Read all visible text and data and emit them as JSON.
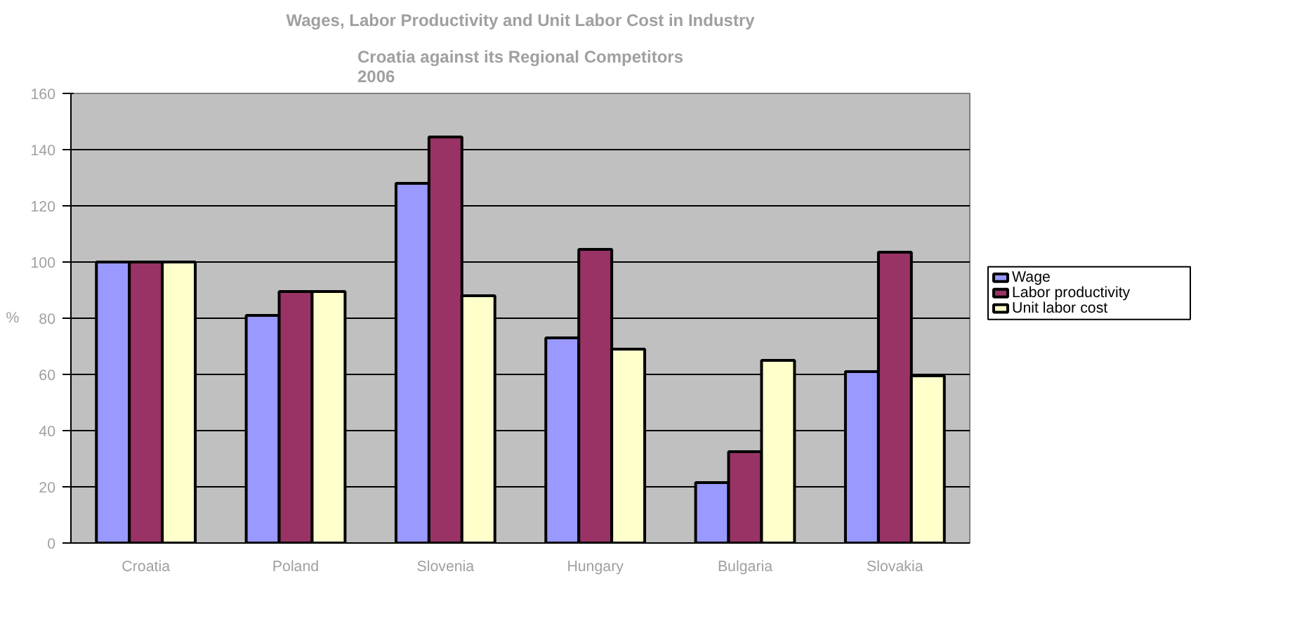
{
  "chart_data": {
    "type": "bar",
    "title": "Wages, Labor Productivity and Unit Labor Cost in Industry",
    "subtitle": "Croatia against its Regional Competitors\n2006",
    "ylabel": "%",
    "categories": [
      "Croatia",
      "Poland",
      "Slovenia",
      "Hungary",
      "Bulgaria",
      "Slovakia"
    ],
    "series": [
      {
        "name": "Wage",
        "color": "#9999ff",
        "values": [
          100,
          81,
          128,
          73,
          21.5,
          61
        ]
      },
      {
        "name": "Labor productivity",
        "color": "#993366",
        "values": [
          100,
          89.5,
          144.5,
          104.5,
          32.5,
          103.5
        ]
      },
      {
        "name": "Unit labor cost",
        "color": "#ffffcc",
        "values": [
          100,
          89.5,
          88,
          69,
          65,
          59.5
        ]
      }
    ],
    "ylim": [
      0,
      160
    ],
    "yticks": [
      0,
      20,
      40,
      60,
      80,
      100,
      120,
      140,
      160
    ],
    "grid": "y",
    "legend": "right"
  }
}
